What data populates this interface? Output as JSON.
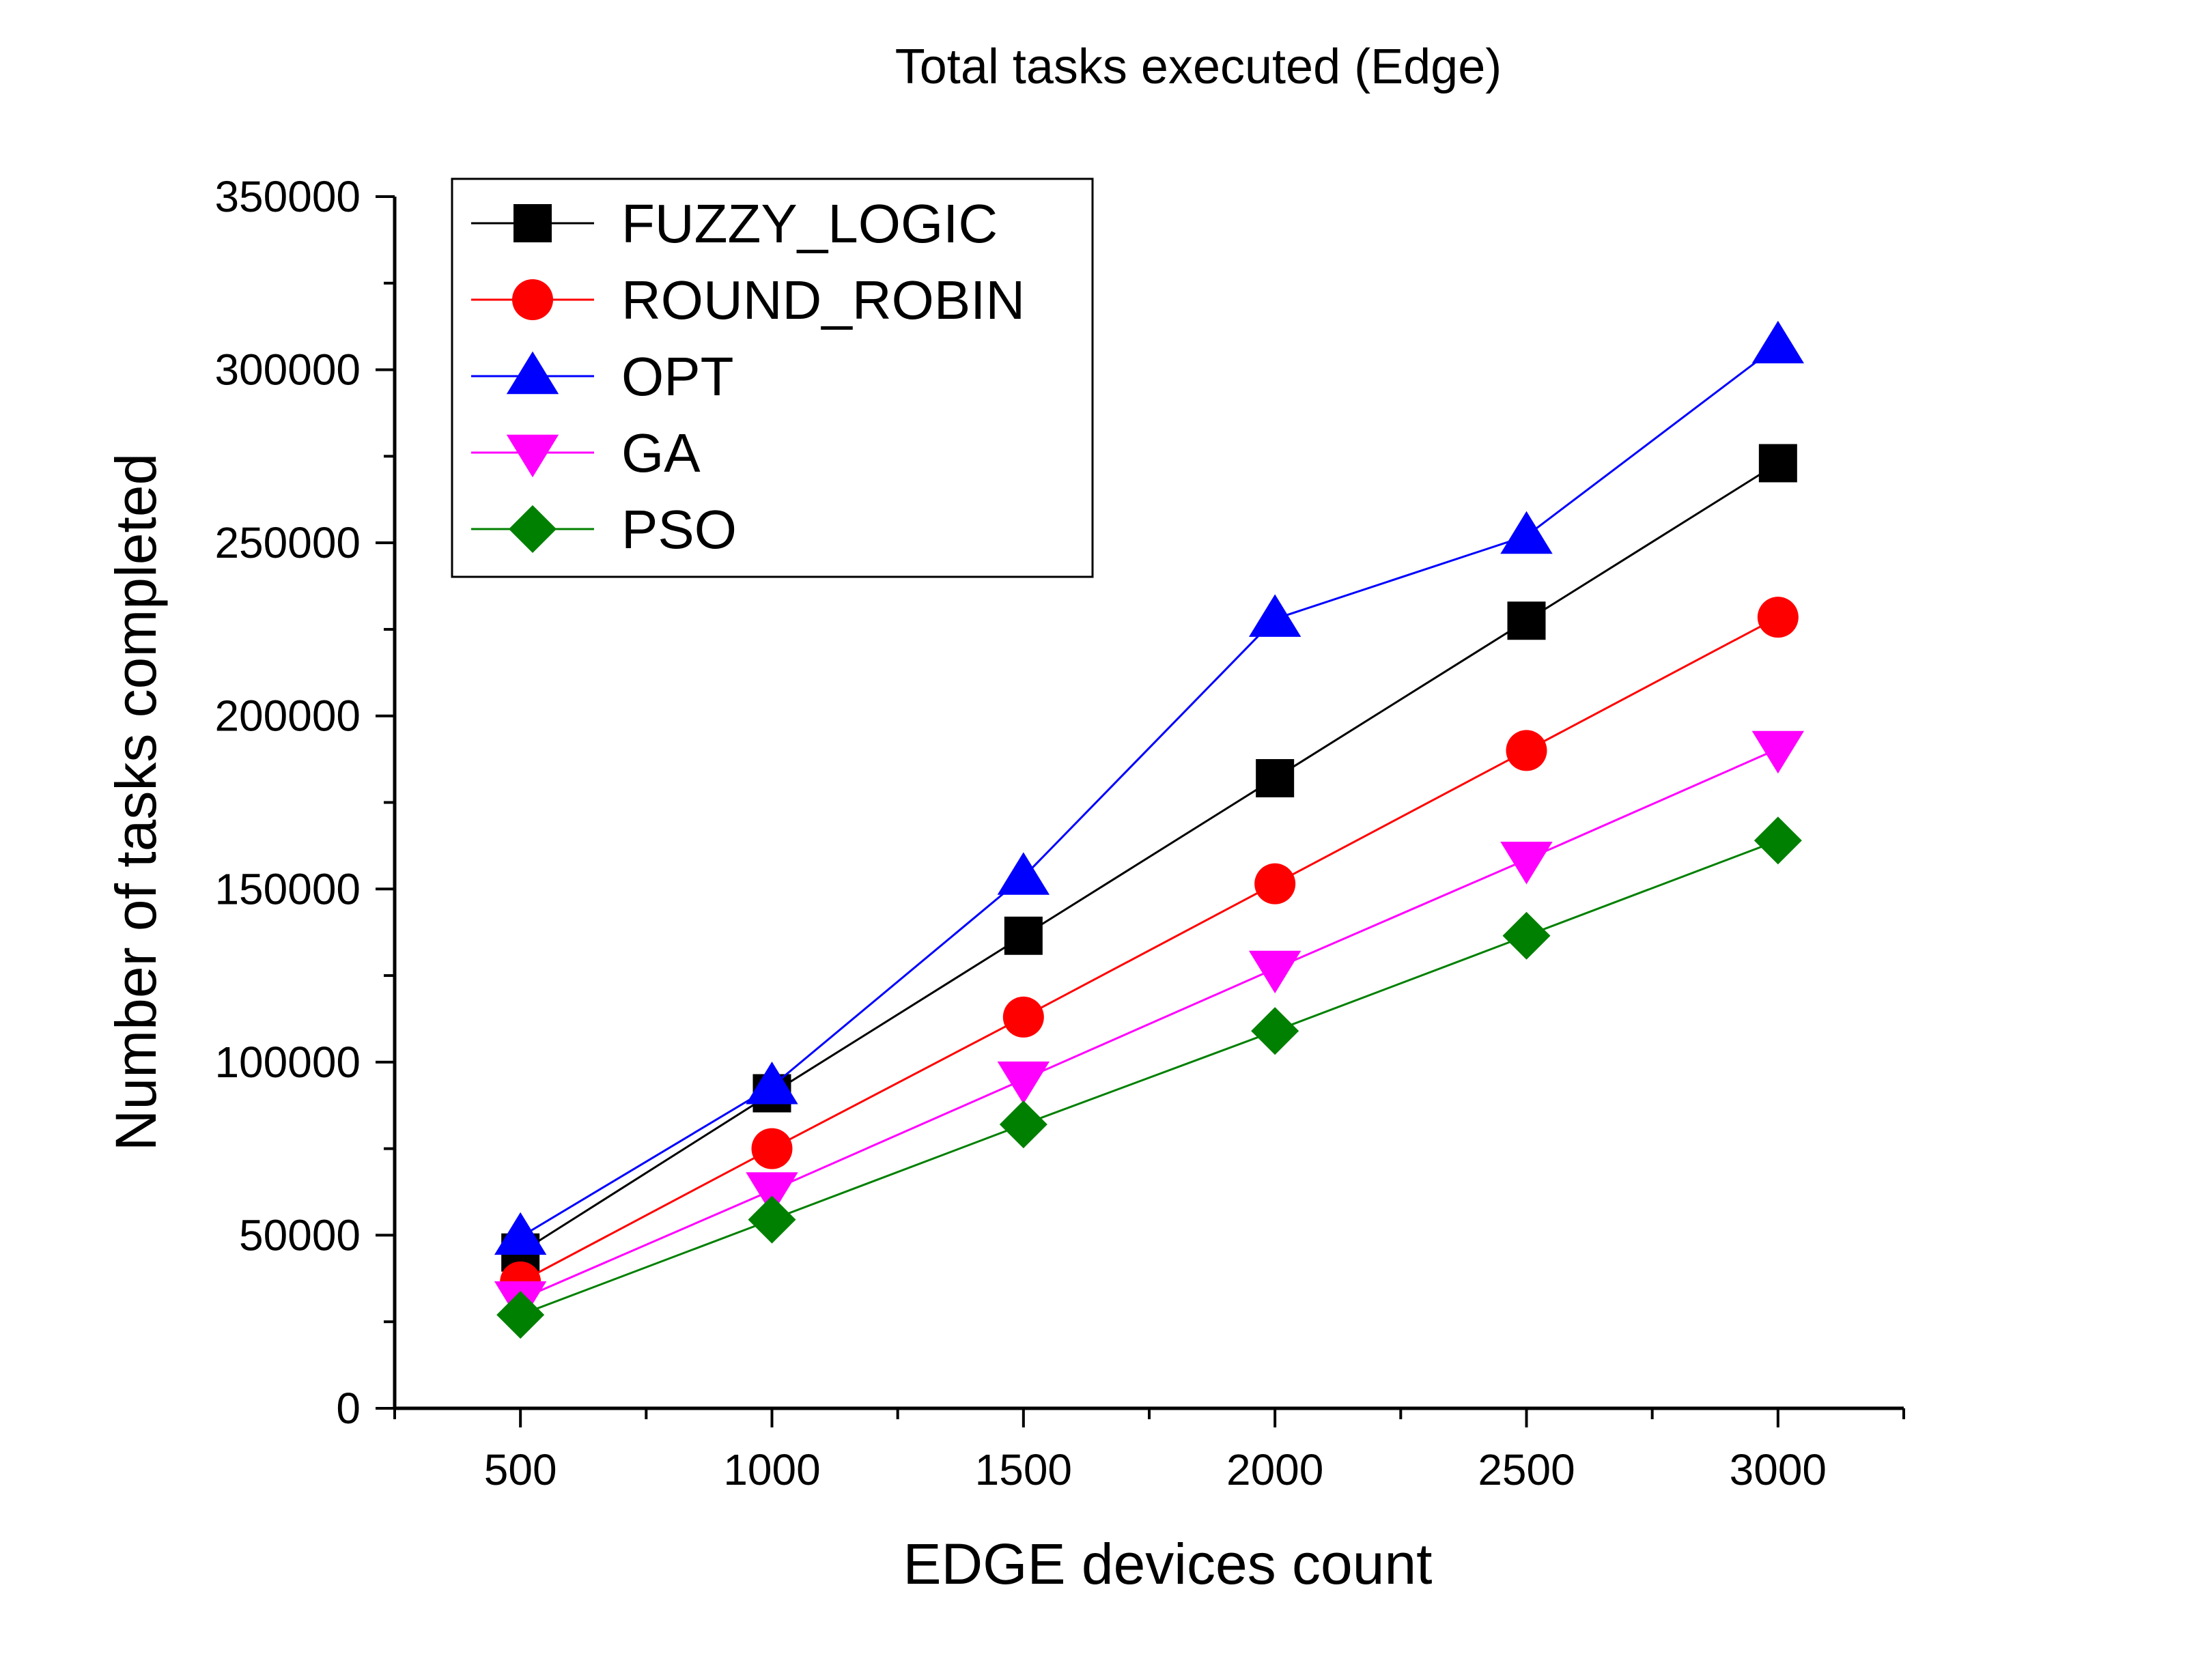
{
  "chart_data": {
    "type": "line",
    "title": "Total tasks executed (Edge)",
    "xlabel": "EDGE devices count",
    "ylabel": "Number of tasks completed",
    "x": [
      500,
      1000,
      1500,
      2000,
      2500,
      3000
    ],
    "xlim": [
      250,
      3250
    ],
    "ylim": [
      0,
      350000
    ],
    "x_ticks": [
      "500",
      "1000",
      "1500",
      "2000",
      "2500",
      "3000"
    ],
    "y_ticks": [
      "0",
      "50000",
      "100000",
      "150000",
      "200000",
      "250000",
      "300000",
      "350000"
    ],
    "grid": false,
    "legend_position": "top-left",
    "series": [
      {
        "name": "FUZZY_LOGIC",
        "color": "#000000",
        "marker": "square",
        "values": [
          45000,
          91000,
          136500,
          182000,
          227500,
          273000
        ]
      },
      {
        "name": "ROUND_ROBIN",
        "color": "#ff0000",
        "marker": "circle",
        "values": [
          36500,
          75000,
          113000,
          151500,
          190000,
          228500
        ]
      },
      {
        "name": "OPT",
        "color": "#0000ff",
        "marker": "triangle-up",
        "values": [
          49500,
          93000,
          153500,
          228000,
          252000,
          307000
        ]
      },
      {
        "name": "GA",
        "color": "#ff00ff",
        "marker": "triangle-down",
        "values": [
          31500,
          63000,
          95000,
          127000,
          158500,
          190500
        ]
      },
      {
        "name": "PSO",
        "color": "#008000",
        "marker": "diamond",
        "values": [
          27000,
          54500,
          82000,
          109000,
          136500,
          164000
        ]
      }
    ]
  }
}
